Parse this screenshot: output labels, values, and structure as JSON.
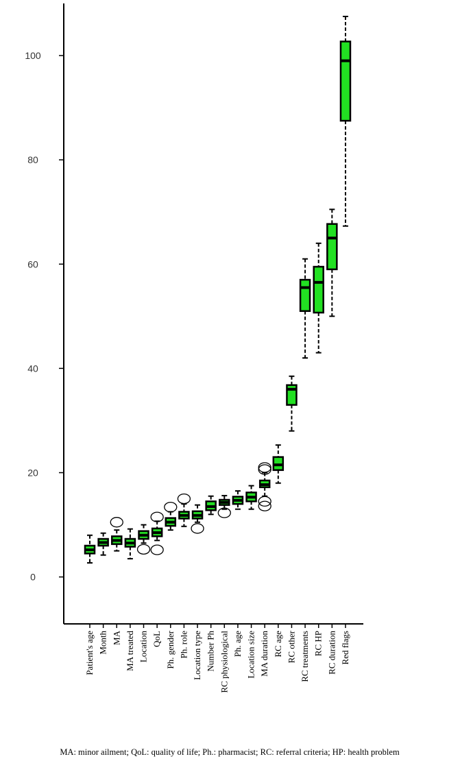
{
  "chart_data": {
    "type": "box",
    "categories": [
      "Patient's age",
      "Month",
      "MA",
      "MA treated",
      "Location",
      "QoL",
      "Ph. gender",
      "Ph. role",
      "Location type",
      "Number Ph",
      "RC physiological",
      "Ph. age",
      "Location size",
      "MA duration",
      "RC age",
      "RC other",
      "RC treatments",
      "RC HP",
      "RC duration",
      "Red flags"
    ],
    "whisker_low": [
      2.7,
      4.2,
      5,
      3.5,
      6.5,
      7,
      9,
      9.7,
      10.5,
      12,
      13,
      13,
      13,
      15.5,
      18,
      28,
      42,
      43,
      50,
      67.3
    ],
    "q1": [
      4.5,
      6,
      6.3,
      5.8,
      7.3,
      7.8,
      9.8,
      11.2,
      11.2,
      12.8,
      13.8,
      14,
      14.5,
      17.2,
      20.5,
      33,
      51,
      50.7,
      59,
      87.5
    ],
    "median": [
      5.2,
      6.6,
      7,
      6.5,
      8,
      8.5,
      10.5,
      11.8,
      11.8,
      13.5,
      14.3,
      14.7,
      15.3,
      17.7,
      21.5,
      36,
      55.5,
      56.5,
      65,
      99
    ],
    "q3": [
      6,
      7.3,
      7.8,
      7.3,
      8.8,
      9.3,
      11.3,
      12.5,
      12.6,
      14.5,
      14.8,
      15.4,
      16.2,
      18.5,
      23,
      36.8,
      57,
      59.5,
      67.7,
      102.7
    ],
    "whisker_high": [
      8,
      8.4,
      9,
      9.2,
      10,
      10.7,
      12.5,
      14,
      13.8,
      15.5,
      15.6,
      16.5,
      17.5,
      20,
      25.3,
      38.5,
      61,
      64,
      70.5,
      107.5
    ],
    "outliers": [
      [],
      [],
      [
        10.5
      ],
      [],
      [
        5.3
      ],
      [
        5.2,
        11.5
      ],
      [
        13.4
      ],
      [
        15
      ],
      [
        9.3
      ],
      [],
      [
        12.3
      ],
      [],
      [],
      [
        13.6,
        14.5,
        20.6,
        21
      ],
      [],
      [],
      [],
      [],
      [],
      []
    ],
    "color": "#22e022",
    "ylim": [
      -9,
      110
    ],
    "yticks": [
      0,
      20,
      40,
      60,
      80,
      100
    ],
    "caption": "MA: minor ailment; QoL: quality of life; Ph.: pharmacist; RC: referral criteria; HP: health problem"
  }
}
